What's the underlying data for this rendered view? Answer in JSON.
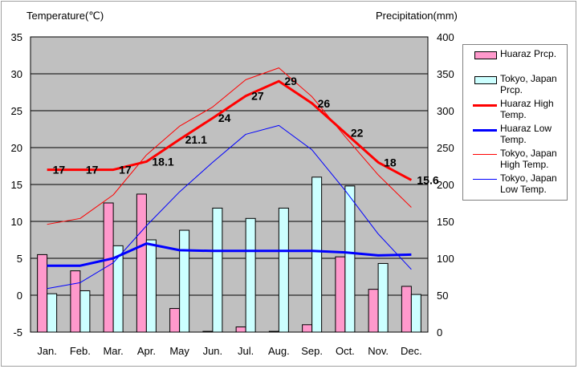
{
  "chart_data": {
    "type": "bar+line",
    "categories": [
      "Jan.",
      "Feb.",
      "Mar.",
      "Apr.",
      "May",
      "Jun.",
      "Jul.",
      "Aug.",
      "Sep.",
      "Oct.",
      "Nov.",
      "Dec."
    ],
    "left_axis": {
      "label": "Temperature(℃)",
      "range": [
        -5,
        35
      ],
      "ticks": [
        -5,
        0,
        5,
        10,
        15,
        20,
        25,
        30,
        35
      ]
    },
    "right_axis": {
      "label": "Precipitation(mm)",
      "range": [
        0,
        400
      ],
      "ticks": [
        0,
        50,
        100,
        150,
        200,
        250,
        300,
        350,
        400
      ]
    },
    "bar_series": [
      {
        "name": "Huaraz Prcp.",
        "color": "#ff99cc",
        "axis": "right",
        "values": [
          105,
          83,
          175,
          187,
          32,
          1,
          7,
          1,
          10,
          102,
          58,
          62
        ]
      },
      {
        "name": "Tokyo, Japan Prcp.",
        "color": "#ccffff",
        "axis": "right",
        "values": [
          52,
          56,
          117,
          125,
          138,
          168,
          154,
          168,
          210,
          198,
          93,
          51
        ]
      }
    ],
    "line_series": [
      {
        "name": "Huaraz High Temp.",
        "color": "#ff0000",
        "width": 3,
        "axis": "left",
        "values": [
          17,
          17,
          17,
          18.1,
          21.1,
          24,
          27,
          29,
          26,
          22,
          18,
          15.6
        ],
        "data_labels": [
          "17",
          "17",
          "17",
          "18.1",
          "21.1",
          "24",
          "27",
          "29",
          "26",
          "22",
          "18",
          "15.6"
        ]
      },
      {
        "name": "Huaraz Low Temp.",
        "color": "#0000ff",
        "width": 3,
        "axis": "left",
        "values": [
          4,
          4,
          5,
          7,
          6.1,
          6,
          6,
          6,
          6,
          5.8,
          5.4,
          5.5
        ]
      },
      {
        "name": "Tokyo, Japan High Temp.",
        "color": "#ff0000",
        "width": 1,
        "axis": "left",
        "values": [
          9.6,
          10.4,
          13.6,
          19,
          22.9,
          25.5,
          29.2,
          30.8,
          26.9,
          21.5,
          16.3,
          11.9
        ]
      },
      {
        "name": "Tokyo, Japan Low Temp.",
        "color": "#0000ff",
        "width": 1,
        "axis": "left",
        "values": [
          0.9,
          1.7,
          4.4,
          9.4,
          14,
          18,
          21.8,
          23,
          19.7,
          14.2,
          8.3,
          3.5
        ]
      }
    ],
    "grid": true,
    "plot_background": "#c0c0c0",
    "legend_position": "right"
  }
}
